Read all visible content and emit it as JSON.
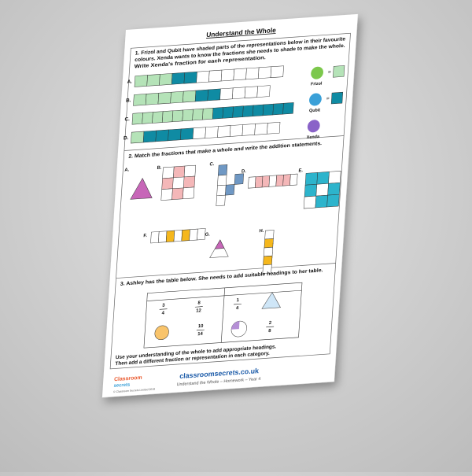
{
  "header": {
    "title": "Understand the Whole"
  },
  "q1": {
    "lines": [
      "1. Frizol and Qubit have shaded parts of the representations below in their favourite",
      "colours. Xenda wants to know the fractions she needs to shade to make the whole.",
      "Write Xenda's fraction for each representation."
    ],
    "labels": [
      "A.",
      "B.",
      "C.",
      "D."
    ],
    "characters": [
      "Frizol",
      "Qubit",
      "Xenda"
    ],
    "equals": "="
  },
  "q2": {
    "text": "2. Match the fractions that make a whole and write the addition statements.",
    "labels": [
      "A.",
      "B.",
      "C.",
      "D.",
      "E.",
      "F.",
      "G.",
      "H."
    ]
  },
  "q3": {
    "text": "3. Ashley has the table below. She needs to add suitable headings to her table.",
    "fractions": [
      {
        "numerator": "3",
        "denominator": "4"
      },
      {
        "numerator": "8",
        "denominator": "12"
      },
      {
        "numerator": "1",
        "denominator": "4"
      },
      {
        "numerator": "10",
        "denominator": "14"
      },
      {
        "numerator": "2",
        "denominator": "8"
      }
    ],
    "closing": [
      "Use your understanding of the whole to add appropriate headings.",
      "Then add a different fraction or representation in each category."
    ]
  },
  "footer": {
    "logo": [
      "Classroom",
      "secrets"
    ],
    "copyright": "© Classroom Secrets Limited 2019",
    "website": "classroomsecrets.co.uk",
    "subtitle": "Understand the Whole – Homework – Year 4"
  }
}
